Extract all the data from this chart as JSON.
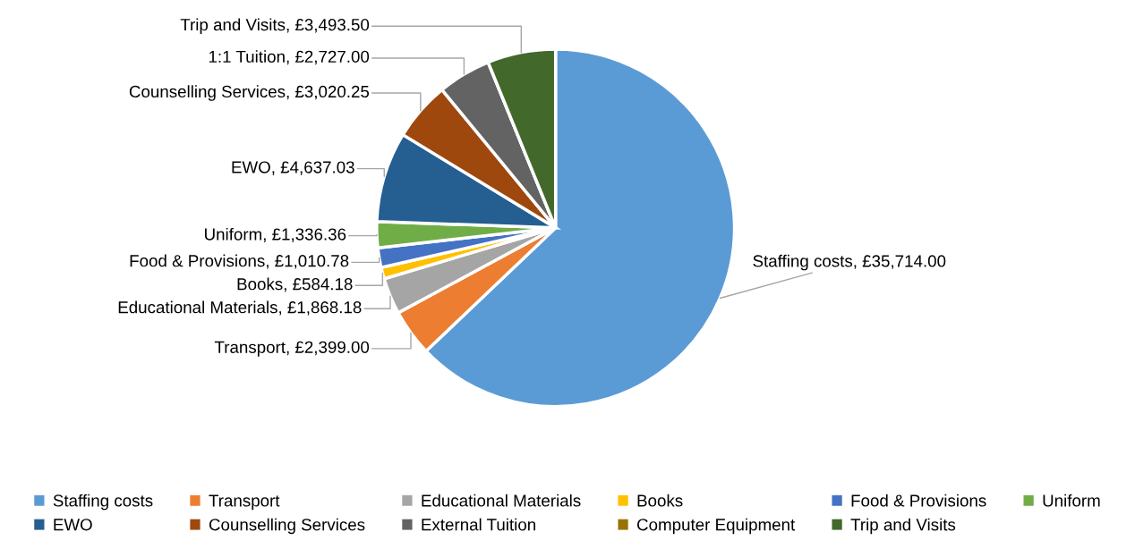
{
  "chart_data": {
    "type": "pie",
    "categories": [
      "Staffing costs",
      "Transport",
      "Educational Materials",
      "Books",
      "Food & Provisions",
      "Uniform",
      "EWO",
      "Counselling Services",
      "External Tuition",
      "Computer Equipment",
      null,
      "Trip and Visits"
    ],
    "values": [
      35714.0,
      2399.0,
      1868.18,
      584.18,
      1010.78,
      1336.36,
      4637.03,
      3020.25,
      2727.0,
      0,
      0,
      3493.5
    ],
    "colors": [
      "#5b9bd5",
      "#ed7d31",
      "#a5a5a5",
      "#ffc000",
      "#4472c4",
      "#70ad47",
      "#255e91",
      "#9e480e",
      "#636363",
      "#997300",
      "#264478",
      "#43682b"
    ],
    "value_labels": [
      "Staffing costs, £35,714.00",
      "Transport, £2,399.00",
      "Educational Materials, £1,868.18",
      "Books, £584.18",
      "Food & Provisions, £1,010.78",
      "Uniform, £1,336.36",
      "EWO, £4,637.03",
      "Counselling Services, £3,020.25",
      "1:1 Tuition, £2,727.00",
      null,
      null,
      "Trip and Visits, £3,493.50"
    ],
    "legend": "bottom"
  }
}
